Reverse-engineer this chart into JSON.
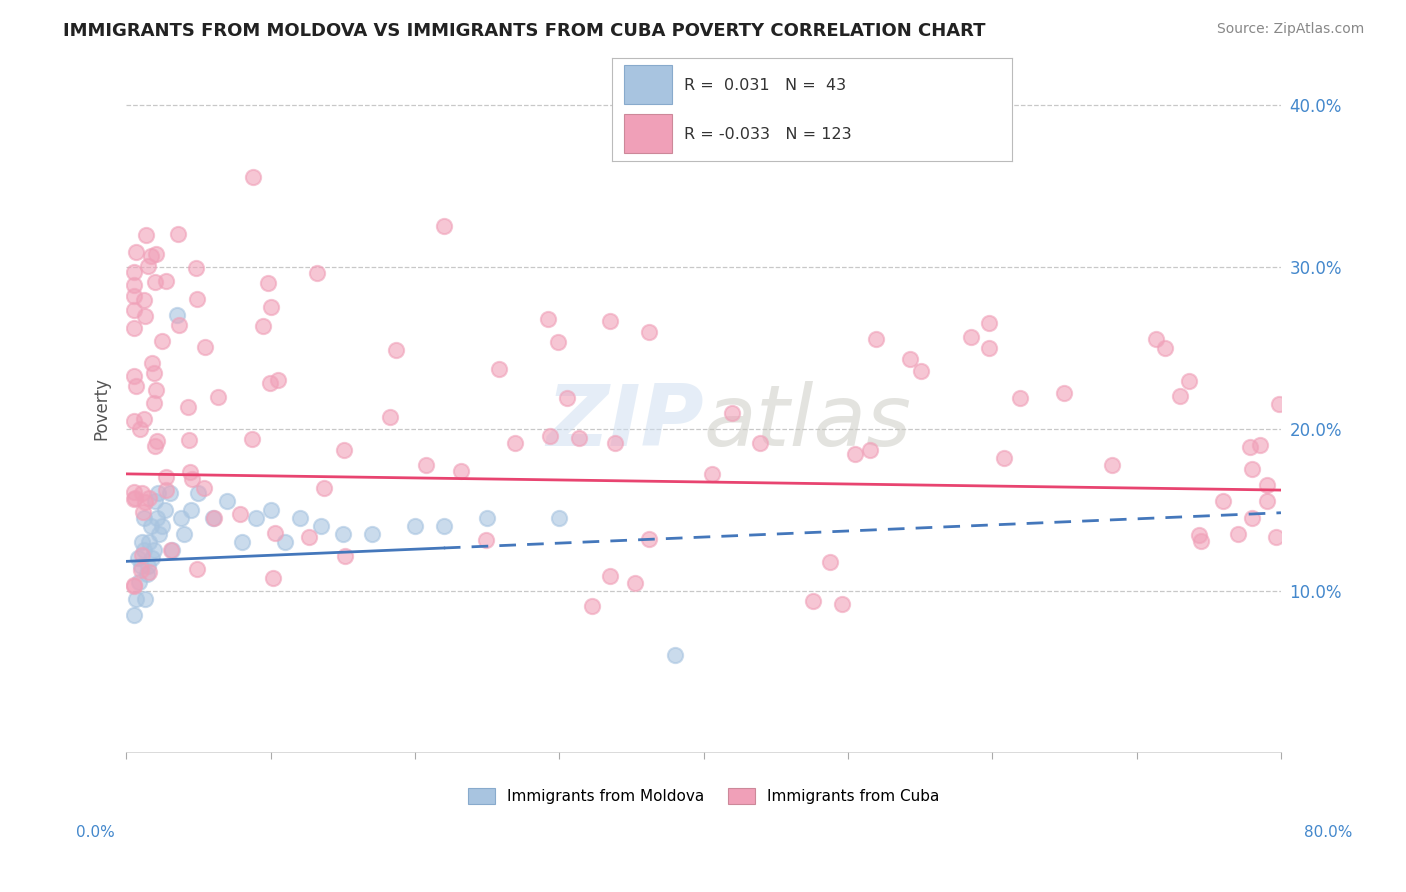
{
  "title": "IMMIGRANTS FROM MOLDOVA VS IMMIGRANTS FROM CUBA POVERTY CORRELATION CHART",
  "source": "Source: ZipAtlas.com",
  "ylabel": "Poverty",
  "legend_entries": [
    {
      "label": "Immigrants from Moldova",
      "R": 0.031,
      "N": 43,
      "color": "#a8c4e0"
    },
    {
      "label": "Immigrants from Cuba",
      "R": -0.033,
      "N": 123,
      "color": "#f0a0b8"
    }
  ],
  "ytick_values": [
    0.1,
    0.2,
    0.3,
    0.4
  ],
  "xlim": [
    0.0,
    0.8
  ],
  "ylim": [
    0.0,
    0.425
  ],
  "watermark": "ZIPatlas",
  "background_color": "#ffffff",
  "grid_color": "#c8c8c8",
  "moldova_scatter_color": "#a8c4e0",
  "cuba_scatter_color": "#f0a0b8",
  "moldova_line_color": "#4477bb",
  "cuba_line_color": "#e84470",
  "moldova_trend_start_y": 0.118,
  "moldova_trend_end_y": 0.148,
  "moldova_trend_start_x": 0.0,
  "moldova_trend_end_x": 0.8,
  "cuba_trend_start_y": 0.172,
  "cuba_trend_end_y": 0.162,
  "cuba_trend_start_x": 0.0,
  "cuba_trend_end_x": 0.8
}
